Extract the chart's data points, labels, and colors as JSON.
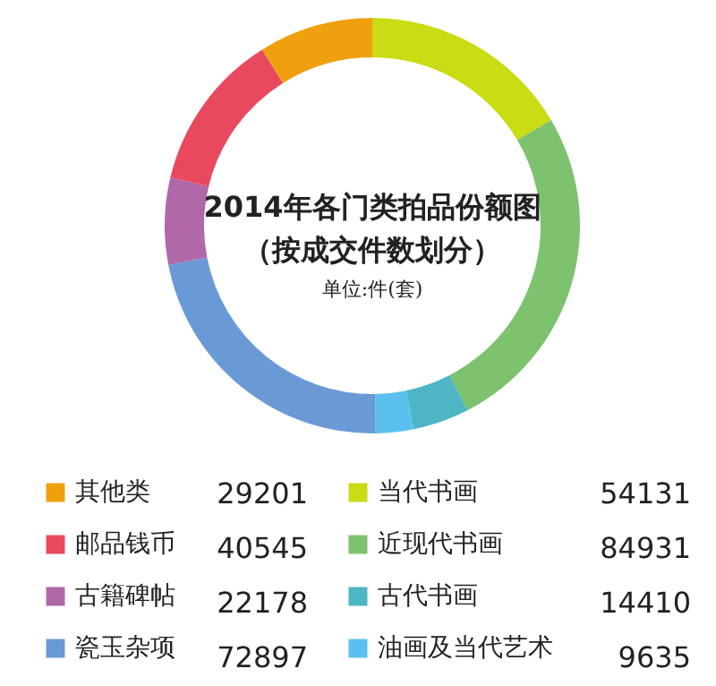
{
  "chart_data": {
    "type": "donut",
    "title": "2014年各门类拍品份额图",
    "subtitle": "（按成交件数划分）",
    "annotations": [
      "单位:件(套)"
    ],
    "categories": [
      "当代书画",
      "近现代书画",
      "古代书画",
      "油画及当代艺术",
      "瓷玉杂项",
      "古籍碑帖",
      "邮品钱币",
      "其他类"
    ],
    "values": [
      54131,
      84931,
      14410,
      9635,
      72897,
      22178,
      40545,
      29201
    ],
    "colors": [
      "#c9dc14",
      "#7dc26e",
      "#4db5c4",
      "#5bc0ee",
      "#6a9ad6",
      "#b068a8",
      "#e8495f",
      "#f0a00e"
    ],
    "data_labels": true,
    "legend": "bottom"
  }
}
